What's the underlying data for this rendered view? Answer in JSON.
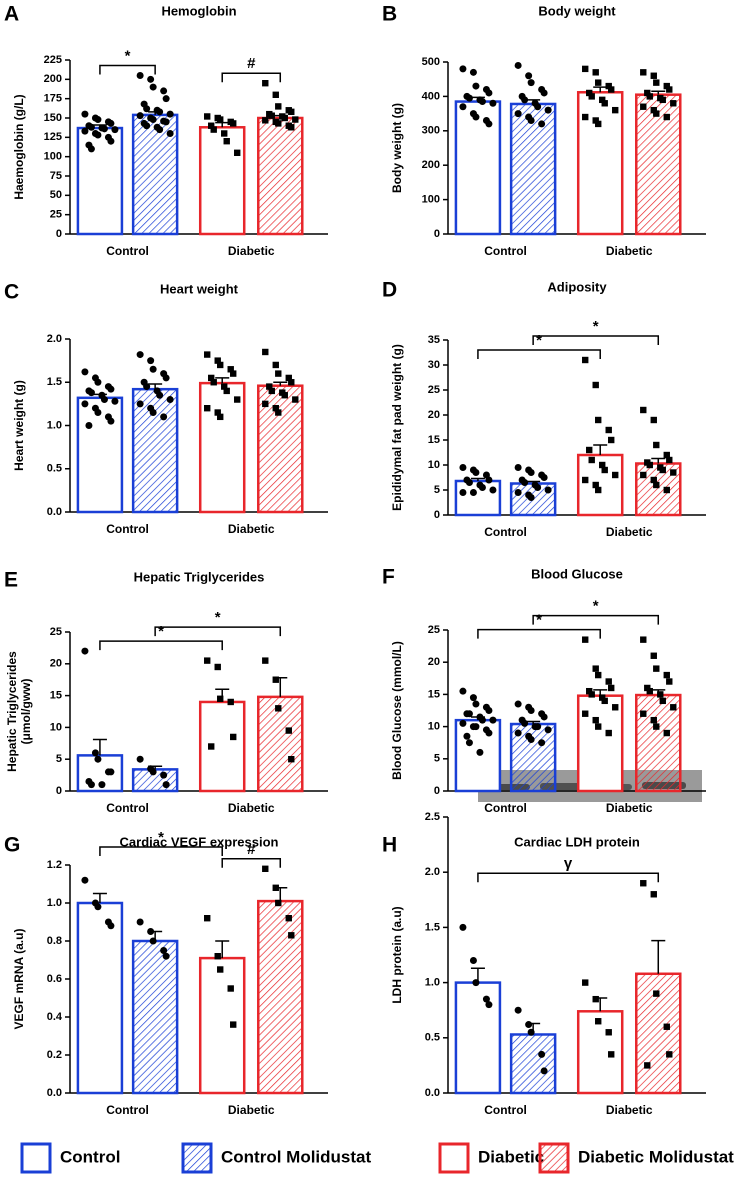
{
  "chart_data": [
    {
      "type": "bar",
      "panel": "A",
      "title": "Hemoglobin",
      "ylabel": "Haemoglobin (g/L)",
      "categories": [
        "Control",
        "Diabetic"
      ],
      "ylim": [
        0,
        225
      ],
      "yticks": [
        0,
        25,
        50,
        75,
        100,
        125,
        150,
        175,
        200,
        225
      ],
      "series": [
        {
          "values": [
            137,
            null
          ],
          "errors": [
            4,
            null
          ],
          "points": [
            [
              155,
              150,
              148,
              145,
              143,
              140,
              138,
              137,
              136,
              135,
              133,
              130,
              128,
              125,
              120,
              115,
              110
            ],
            null
          ]
        },
        {
          "values": [
            154,
            null
          ],
          "errors": [
            4,
            null
          ],
          "points": [
            [
              205,
              200,
              190,
              185,
              175,
              168,
              162,
              160,
              158,
              155,
              153,
              150,
              148,
              146,
              145,
              143,
              140,
              138,
              135,
              130
            ],
            null
          ]
        },
        {
          "values": [
            null,
            138
          ],
          "errors": [
            null,
            6
          ],
          "points": [
            null,
            [
              152,
              150,
              148,
              145,
              143,
              140,
              135,
              130,
              120,
              105
            ]
          ]
        },
        {
          "values": [
            null,
            150
          ],
          "errors": [
            null,
            3
          ],
          "points": [
            null,
            [
              195,
              180,
              165,
              160,
              158,
              155,
              153,
              152,
              150,
              148,
              147,
              145,
              143,
              140,
              138
            ]
          ]
        }
      ],
      "brackets": [
        {
          "label": "*",
          "from": 0,
          "to": 1
        },
        {
          "label": "#",
          "from": 2,
          "to": 3
        }
      ]
    },
    {
      "type": "bar",
      "panel": "B",
      "title": "Body weight",
      "ylabel": "Body weight (g)",
      "categories": [
        "Control",
        "Diabetic"
      ],
      "ylim": [
        0,
        500
      ],
      "yticks": [
        0,
        100,
        200,
        300,
        400,
        500
      ],
      "series": [
        {
          "values": [
            385,
            null
          ],
          "errors": [
            12,
            null
          ],
          "points": [
            [
              480,
              470,
              430,
              420,
              410,
              400,
              395,
              390,
              385,
              380,
              370,
              350,
              340,
              330,
              320
            ],
            null
          ]
        },
        {
          "values": [
            378,
            null
          ],
          "errors": [
            12,
            null
          ],
          "points": [
            [
              490,
              460,
              440,
              420,
              410,
              400,
              390,
              380,
              370,
              360,
              350,
              340,
              330,
              320
            ],
            null
          ]
        },
        {
          "values": [
            null,
            412
          ],
          "errors": [
            null,
            15
          ],
          "points": [
            null,
            [
              480,
              470,
              440,
              430,
              420,
              410,
              400,
              390,
              380,
              360,
              340,
              330,
              320
            ]
          ]
        },
        {
          "values": [
            null,
            405
          ],
          "errors": [
            null,
            10
          ],
          "points": [
            null,
            [
              470,
              460,
              440,
              430,
              420,
              410,
              400,
              395,
              390,
              380,
              370,
              360,
              350,
              340
            ]
          ]
        }
      ],
      "brackets": []
    },
    {
      "type": "bar",
      "panel": "C",
      "title": "Heart weight",
      "ylabel": "Heart weight (g)",
      "categories": [
        "Control",
        "Diabetic"
      ],
      "ylim": [
        0,
        2
      ],
      "yticks": [
        {
          "value": 0,
          "label": "0.0"
        },
        0.5,
        {
          "value": 1,
          "label": "1.0"
        },
        1.5,
        {
          "value": 2,
          "label": "2.0"
        }
      ],
      "series": [
        {
          "values": [
            1.32,
            null
          ],
          "errors": [
            0.04,
            null
          ],
          "points": [
            [
              1.62,
              1.55,
              1.5,
              1.45,
              1.42,
              1.4,
              1.38,
              1.35,
              1.3,
              1.28,
              1.25,
              1.2,
              1.15,
              1.1,
              1.05,
              1.0
            ],
            null
          ]
        },
        {
          "values": [
            1.42,
            null
          ],
          "errors": [
            0.06,
            null
          ],
          "points": [
            [
              1.82,
              1.75,
              1.65,
              1.6,
              1.55,
              1.5,
              1.45,
              1.4,
              1.35,
              1.3,
              1.25,
              1.2,
              1.15,
              1.1
            ],
            null
          ]
        },
        {
          "values": [
            null,
            1.49
          ],
          "errors": [
            null,
            0.06
          ],
          "points": [
            null,
            [
              1.82,
              1.75,
              1.7,
              1.65,
              1.6,
              1.55,
              1.5,
              1.45,
              1.4,
              1.3,
              1.2,
              1.15,
              1.1
            ]
          ]
        },
        {
          "values": [
            null,
            1.46
          ],
          "errors": [
            null,
            0.04
          ],
          "points": [
            null,
            [
              1.85,
              1.7,
              1.6,
              1.55,
              1.5,
              1.45,
              1.4,
              1.38,
              1.35,
              1.3,
              1.25,
              1.2,
              1.15
            ]
          ]
        }
      ],
      "brackets": []
    },
    {
      "type": "bar",
      "panel": "D",
      "title": "Adiposity",
      "ylabel": "Epididymal fat pad weight (g)",
      "categories": [
        "Control",
        "Diabetic"
      ],
      "ylim": [
        0,
        35
      ],
      "yticks": [
        0,
        5,
        10,
        15,
        20,
        25,
        30,
        35
      ],
      "series": [
        {
          "values": [
            6.8,
            null
          ],
          "errors": [
            0.5,
            null
          ],
          "points": [
            [
              9.5,
              9,
              8.5,
              8,
              7,
              7,
              6.5,
              6,
              5.5,
              5,
              4.5,
              4.5
            ],
            null
          ]
        },
        {
          "values": [
            6.3,
            null
          ],
          "errors": [
            0.4,
            null
          ],
          "points": [
            [
              9.5,
              9,
              8.5,
              8,
              7.5,
              7,
              6.5,
              6,
              5.5,
              5,
              4.5,
              4,
              3.5
            ],
            null
          ]
        },
        {
          "values": [
            null,
            12
          ],
          "errors": [
            null,
            2
          ],
          "points": [
            null,
            [
              31,
              26,
              19,
              17,
              15,
              13,
              11,
              10,
              9,
              8,
              7,
              6,
              5
            ]
          ]
        },
        {
          "values": [
            null,
            10.3
          ],
          "errors": [
            null,
            1
          ],
          "points": [
            null,
            [
              21,
              19,
              14,
              12,
              11,
              10.5,
              10,
              9.5,
              9,
              8.5,
              8,
              7,
              6,
              5
            ]
          ]
        }
      ],
      "brackets": [
        {
          "label": "*",
          "from": 0,
          "to": 2
        },
        {
          "label": "*",
          "from": 1,
          "to": 3
        }
      ]
    },
    {
      "type": "bar",
      "panel": "E",
      "title": "Hepatic Triglycerides",
      "ylabel": [
        "Hepatic Triglycerides",
        "(μmol/gww)"
      ],
      "categories": [
        "Control",
        "Diabetic"
      ],
      "ylim": [
        0,
        25
      ],
      "yticks": [
        0,
        5,
        10,
        15,
        20,
        25
      ],
      "series": [
        {
          "values": [
            5.6,
            null
          ],
          "errors": [
            2.5,
            null
          ],
          "points": [
            [
              22,
              6,
              5,
              3,
              3,
              1.5,
              1,
              1
            ],
            null
          ]
        },
        {
          "values": [
            3.4,
            null
          ],
          "errors": [
            0.5,
            null
          ],
          "points": [
            [
              5,
              3.5,
              3,
              2.5,
              1
            ],
            null
          ]
        },
        {
          "values": [
            null,
            14
          ],
          "errors": [
            null,
            2
          ],
          "points": [
            null,
            [
              20.5,
              19.5,
              14.5,
              14,
              8.5,
              7
            ]
          ]
        },
        {
          "values": [
            null,
            14.8
          ],
          "errors": [
            null,
            3
          ],
          "points": [
            null,
            [
              20.5,
              17.5,
              13,
              9.5,
              5
            ]
          ]
        }
      ],
      "brackets": [
        {
          "label": "*",
          "from": 0,
          "to": 2
        },
        {
          "label": "*",
          "from": 1,
          "to": 3
        }
      ]
    },
    {
      "type": "bar",
      "panel": "F",
      "title": "Blood Glucose",
      "ylabel": "Blood Glucose (mmol/L)",
      "categories": [
        "Control",
        "Diabetic"
      ],
      "ylim": [
        0,
        25
      ],
      "yticks": [
        0,
        5,
        10,
        15,
        20,
        25
      ],
      "series": [
        {
          "values": [
            11,
            null
          ],
          "errors": [
            0.5,
            null
          ],
          "points": [
            [
              15.5,
              14.5,
              13.5,
              13,
              12.5,
              12,
              12,
              11.5,
              11,
              11,
              10.5,
              10,
              10,
              9.5,
              9,
              8.5,
              7.5,
              6
            ],
            null
          ]
        },
        {
          "values": [
            10.4,
            null
          ],
          "errors": [
            0.4,
            null
          ],
          "points": [
            [
              13.5,
              13,
              12.5,
              12,
              11.5,
              11,
              10.5,
              10,
              10,
              9.5,
              9,
              8.5,
              8,
              7.5
            ],
            null
          ]
        },
        {
          "values": [
            null,
            14.8
          ],
          "errors": [
            null,
            0.9
          ],
          "points": [
            null,
            [
              23.5,
              19,
              18,
              17,
              16,
              15.5,
              15,
              14.5,
              14,
              13,
              12,
              11,
              10,
              9
            ]
          ]
        },
        {
          "values": [
            null,
            14.9
          ],
          "errors": [
            null,
            0.8
          ],
          "points": [
            null,
            [
              23.5,
              21,
              19,
              18,
              17,
              16,
              15.5,
              15,
              14,
              13,
              12,
              11,
              10,
              9
            ]
          ]
        }
      ],
      "brackets": [
        {
          "label": "*",
          "from": 0,
          "to": 2
        },
        {
          "label": "*",
          "from": 1,
          "to": 3
        }
      ]
    },
    {
      "type": "bar",
      "panel": "G",
      "title": "Cardiac VEGF expression",
      "ylabel": "VEGF mRNA (a.u)",
      "categories": [
        "Control",
        "Diabetic"
      ],
      "ylim": [
        0,
        1.2
      ],
      "yticks": [
        {
          "value": 0,
          "label": "0.0"
        },
        0.2,
        0.4,
        0.6,
        0.8,
        {
          "value": 1,
          "label": "1.0"
        },
        1.2
      ],
      "series": [
        {
          "values": [
            1.0,
            null
          ],
          "errors": [
            0.05,
            null
          ],
          "points": [
            [
              1.12,
              1.0,
              0.98,
              0.9,
              0.88
            ],
            null
          ]
        },
        {
          "values": [
            0.8,
            null
          ],
          "errors": [
            0.05,
            null
          ],
          "points": [
            [
              0.9,
              0.85,
              0.8,
              0.75,
              0.72
            ],
            null
          ]
        },
        {
          "values": [
            null,
            0.71
          ],
          "errors": [
            null,
            0.09
          ],
          "points": [
            null,
            [
              0.92,
              0.72,
              0.65,
              0.55,
              0.36
            ]
          ]
        },
        {
          "values": [
            null,
            1.01
          ],
          "errors": [
            null,
            0.07
          ],
          "points": [
            null,
            [
              1.18,
              1.08,
              1.0,
              0.92,
              0.83
            ]
          ]
        }
      ],
      "brackets": [
        {
          "label": "#",
          "from": 2,
          "to": 3
        },
        {
          "label": "*",
          "from": 0,
          "to": 2
        }
      ]
    },
    {
      "type": "bar",
      "panel": "H",
      "title": "Cardiac LDH protein",
      "ylabel": "LDH protein (a.u)",
      "categories": [
        "Control",
        "Diabetic"
      ],
      "ylim": [
        0,
        2.5
      ],
      "yticks": [
        {
          "value": 0,
          "label": "0.0"
        },
        0.5,
        {
          "value": 1,
          "label": "1.0"
        },
        1.5,
        {
          "value": 2,
          "label": "2.0"
        },
        2.5
      ],
      "series": [
        {
          "values": [
            1.0,
            null
          ],
          "errors": [
            0.13,
            null
          ],
          "points": [
            [
              1.5,
              1.2,
              1.0,
              0.85,
              0.8
            ],
            null
          ]
        },
        {
          "values": [
            0.53,
            null
          ],
          "errors": [
            0.1,
            null
          ],
          "points": [
            [
              0.75,
              0.62,
              0.55,
              0.35,
              0.2
            ],
            null
          ]
        },
        {
          "values": [
            null,
            0.74
          ],
          "errors": [
            null,
            0.12
          ],
          "points": [
            null,
            [
              1.0,
              0.85,
              0.65,
              0.55,
              0.35
            ]
          ]
        },
        {
          "values": [
            null,
            1.08
          ],
          "errors": [
            null,
            0.3
          ],
          "points": [
            null,
            [
              1.9,
              1.8,
              0.9,
              0.6,
              0.35,
              0.25
            ]
          ]
        }
      ],
      "brackets": [
        {
          "label": "γ",
          "from": 0,
          "to": 3
        }
      ]
    }
  ],
  "legend": {
    "series": [
      {
        "name": "Control",
        "color": "#1a3fd6",
        "hatched": false,
        "marker": "circle"
      },
      {
        "name": "Control Molidustat",
        "color": "#1a3fd6",
        "hatched": true,
        "marker": "circle"
      },
      {
        "name": "Diabetic",
        "color": "#e8262b",
        "hatched": false,
        "marker": "square"
      },
      {
        "name": "Diabetic Molidustat",
        "color": "#e8262b",
        "hatched": true,
        "marker": "square"
      }
    ]
  }
}
